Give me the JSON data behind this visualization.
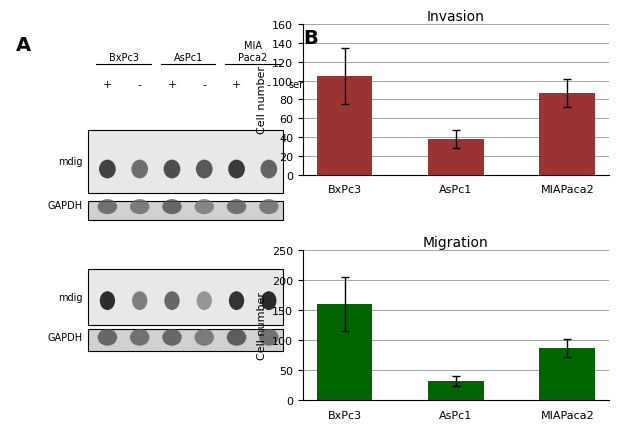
{
  "panel_A_label": "A",
  "panel_B_label": "B",
  "invasion": {
    "title": "Invasion",
    "categories": [
      "BxPc3",
      "AsPc1",
      "MIAPaca2"
    ],
    "values": [
      105,
      38,
      87
    ],
    "errors": [
      30,
      10,
      15
    ],
    "bar_color": "#9b3333",
    "ylabel": "Cell number",
    "ylim": [
      0,
      160
    ],
    "yticks": [
      0,
      20,
      40,
      60,
      80,
      100,
      120,
      140,
      160
    ]
  },
  "migration": {
    "title": "Migration",
    "categories": [
      "BxPc3",
      "AsPc1",
      "MIAPaca2"
    ],
    "values": [
      160,
      32,
      87
    ],
    "errors": [
      45,
      8,
      15
    ],
    "bar_color": "#006400",
    "ylabel": "Cell number",
    "ylim": [
      0,
      250
    ],
    "yticks": [
      0,
      50,
      100,
      150,
      200,
      250
    ]
  },
  "western_blot": {
    "cell_lines": [
      "BxPc3",
      "AsPc1",
      "MIA\nPaca2"
    ],
    "serum_labels": [
      "+",
      "-",
      "+",
      "-",
      "+",
      "-"
    ],
    "serum_text": "serum",
    "row_labels_top": [
      "mdig",
      "GAPDH"
    ],
    "row_labels_bottom": [
      "mdig",
      "GAPDH"
    ]
  },
  "bg_color": "#ffffff"
}
